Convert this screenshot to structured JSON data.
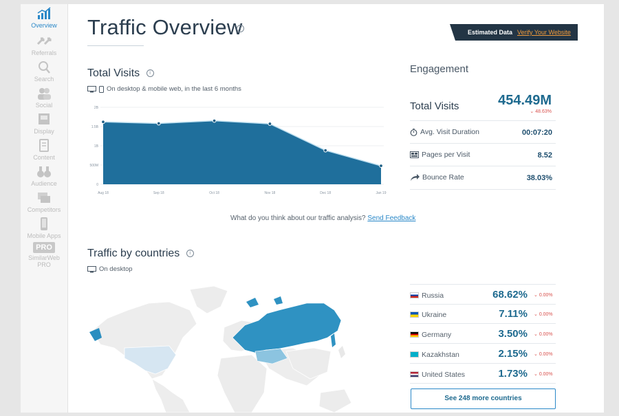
{
  "sidebar": {
    "items": [
      {
        "label": "Overview",
        "icon": "bar-chart-icon",
        "active": true
      },
      {
        "label": "Referrals",
        "icon": "arrows-icon"
      },
      {
        "label": "Search",
        "icon": "magnifier-icon"
      },
      {
        "label": "Social",
        "icon": "people-icon"
      },
      {
        "label": "Display",
        "icon": "display-ad-icon"
      },
      {
        "label": "Content",
        "icon": "document-icon"
      },
      {
        "label": "Audience",
        "icon": "binoculars-icon"
      },
      {
        "label": "Competitors",
        "icon": "layers-icon"
      },
      {
        "label": "Mobile Apps",
        "icon": "phone-icon"
      },
      {
        "label": "SimilarWeb PRO",
        "badge": "PRO"
      }
    ]
  },
  "header": {
    "title": "Traffic Overview",
    "estimated_label": "Estimated Data",
    "verify_link": "Verify Your Website"
  },
  "total_visits": {
    "title": "Total Visits",
    "subnote": "On desktop & mobile web, in the last 6 months"
  },
  "chart_data": {
    "type": "area",
    "x": [
      "Aug 18",
      "Sep 18",
      "Oct 18",
      "Nov 18",
      "Dec 18",
      "Jan 19"
    ],
    "values": [
      1620000000,
      1580000000,
      1650000000,
      1570000000,
      880000000,
      480000000
    ],
    "y_ticks": [
      "2B",
      "1.5B",
      "1B",
      "500M",
      "0"
    ],
    "ylim": [
      0,
      2000000000
    ],
    "grid": true,
    "color": "#1f6f9c"
  },
  "feedback": {
    "text": "What do you think about our traffic analysis?",
    "link": "Send Feedback"
  },
  "engagement": {
    "title": "Engagement",
    "total_label": "Total Visits",
    "total_value": "454.49M",
    "total_change": "48.63%",
    "rows": [
      {
        "label": "Avg. Visit Duration",
        "value": "00:07:20",
        "icon": "stopwatch-icon"
      },
      {
        "label": "Pages per Visit",
        "value": "8.52",
        "icon": "pages-icon"
      },
      {
        "label": "Bounce Rate",
        "value": "38.03%",
        "icon": "bounce-arrow-icon"
      }
    ]
  },
  "countries": {
    "title": "Traffic by countries",
    "subnote": "On desktop",
    "rows": [
      {
        "name": "Russia",
        "value": "68.62%",
        "change": "0.00%",
        "flag": [
          "#ffffff",
          "#0039a6",
          "#d52b1e"
        ]
      },
      {
        "name": "Ukraine",
        "value": "7.11%",
        "change": "0.00%",
        "flag": [
          "#0057b7",
          "#ffd700"
        ]
      },
      {
        "name": "Germany",
        "value": "3.50%",
        "change": "0.00%",
        "flag": [
          "#000000",
          "#dd0000",
          "#ffce00"
        ]
      },
      {
        "name": "Kazakhstan",
        "value": "2.15%",
        "change": "0.00%",
        "flag": [
          "#00afca"
        ]
      },
      {
        "name": "United States",
        "value": "1.73%",
        "change": "0.00%",
        "flag": [
          "#b22234",
          "#ffffff",
          "#3c3b6e"
        ]
      }
    ],
    "more_button": "See 248 more countries"
  }
}
